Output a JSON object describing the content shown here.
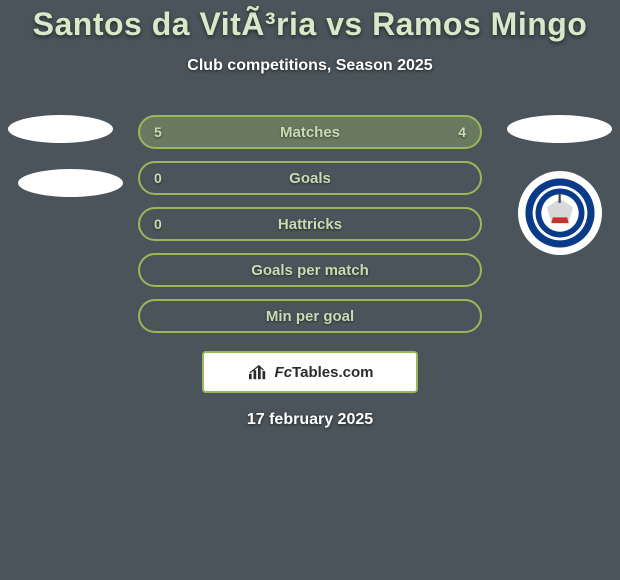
{
  "background_color": "#4a545a",
  "title": "Santos da VitÃ³ria vs Ramos Mingo",
  "title_color": "#d8e8c8",
  "title_fontsize": 32,
  "subtitle": "Club competitions, Season 2025",
  "subtitle_color": "#ffffff",
  "subtitle_fontsize": 16,
  "row_border_color": "#98b85a",
  "row_text_color": "#c8dcb4",
  "rows": [
    {
      "label": "Matches",
      "left": "5",
      "right": "4",
      "bg": "#6a7a60"
    },
    {
      "label": "Goals",
      "left": "0",
      "right": "",
      "bg": "#4a545a"
    },
    {
      "label": "Hattricks",
      "left": "0",
      "right": "",
      "bg": "#4a545a"
    },
    {
      "label": "Goals per match",
      "left": "",
      "right": "",
      "bg": "#4a545a"
    },
    {
      "label": "Min per goal",
      "left": "",
      "right": "",
      "bg": "#4a545a"
    }
  ],
  "left_ovals": 2,
  "right_ovals": 1,
  "right_badge": {
    "ring_outer": "#0a3a8a",
    "ring_inner": "#ffffff",
    "flag_top": "#d8d8d8",
    "flag_bottom": "#c8322c"
  },
  "footer": {
    "brand_prefix": "Fc",
    "brand_rest": "Tables.com",
    "border_color": "#98b85a",
    "bg_color": "#ffffff",
    "text_color": "#2b2b2b",
    "icon_color": "#2b2b2b"
  },
  "date": "17 february 2025",
  "date_color": "#ffffff"
}
